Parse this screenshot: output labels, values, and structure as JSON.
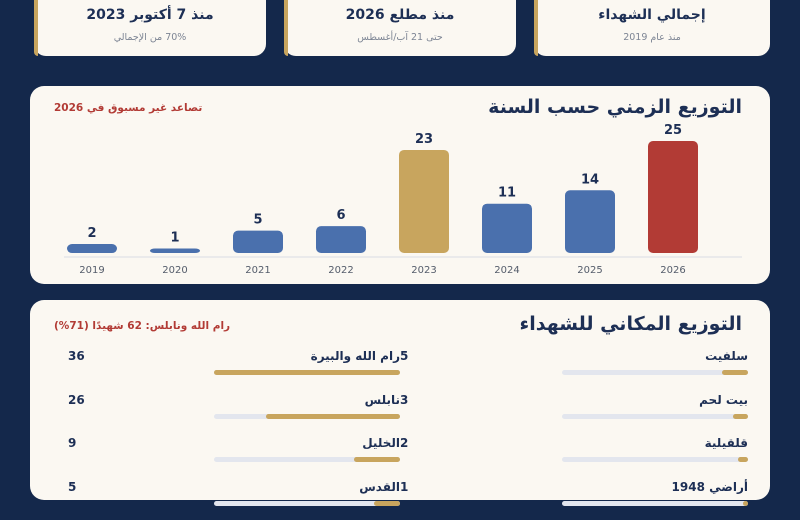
{
  "stats": [
    {
      "value": "إجمالي الشهداء",
      "subtitle": "منذ عام 2019"
    },
    {
      "value": "منذ مطلع 2026",
      "subtitle": "حتى 21 آب/أغسطس"
    },
    {
      "value": "منذ 7 أكتوبر 2023",
      "subtitle": "70% من الإجمالي"
    }
  ],
  "yearly": {
    "title": "التوزيع الزمني حسب السنة",
    "note": "تصاعد غير مسبوق في 2026"
  },
  "places_section": {
    "title": "التوزيع المكاني للشهداء",
    "note": "رام الله ونابلس: 62 شهيدًا (71%)"
  },
  "colors": {
    "blue": "#4a70ad",
    "gold": "#c8a55e",
    "red": "#b23b35",
    "navy": "#14284b"
  },
  "chart_data": [
    {
      "type": "bar",
      "title": "التوزيع الزمني حسب السنة",
      "categories": [
        "2019",
        "2020",
        "2021",
        "2022",
        "2023",
        "2024",
        "2025",
        "2026"
      ],
      "values": [
        2,
        1,
        5,
        6,
        23,
        11,
        14,
        25
      ],
      "bar_colors": [
        "blue",
        "blue",
        "blue",
        "blue",
        "gold",
        "blue",
        "blue",
        "red"
      ],
      "ylim": [
        0,
        25
      ],
      "grid": false,
      "data_labels": true
    },
    {
      "type": "bar",
      "orientation": "horizontal",
      "title": "التوزيع المكاني للشهداء",
      "categories": [
        "رام الله والبيرة",
        "نابلس",
        "الخليل",
        "القدس",
        "سلفيت",
        "بيت لحم",
        "قلقيلية",
        "أراضي 1948"
      ],
      "values": [
        36,
        26,
        9,
        5,
        5,
        3,
        2,
        1
      ],
      "xlim": [
        0,
        36
      ]
    }
  ]
}
